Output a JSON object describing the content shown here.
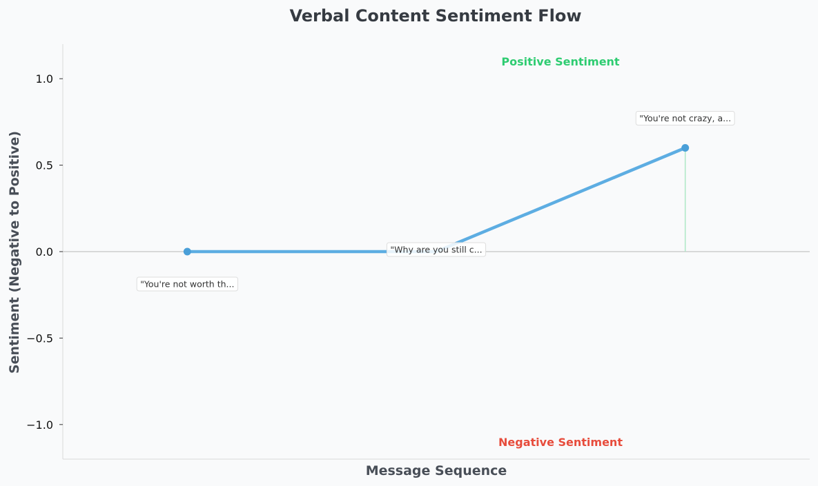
{
  "chart_data": {
    "type": "line",
    "title": "Verbal Content Sentiment Flow",
    "xlabel": "Message Sequence",
    "ylabel": "Sentiment (Negative to Positive)",
    "ylim": [
      -1.2,
      1.2
    ],
    "yticks": [
      1.0,
      0.5,
      0.0,
      -0.5,
      -1.0
    ],
    "ytick_labels": [
      "1.0",
      "0.5",
      "0.0",
      "−0.5",
      "−1.0"
    ],
    "grid": false,
    "series": [
      {
        "color": "#5dade2",
        "points": [
          {
            "x": 0,
            "y": 0.0,
            "marker": true,
            "annotation": "\"You're not worth th..."
          },
          {
            "x": 1,
            "y": 0.0,
            "marker": false,
            "annotation": "\"Why are you still c..."
          },
          {
            "x": 2,
            "y": 0.6,
            "marker": true,
            "annotation": "\"You're not crazy, a..."
          }
        ]
      }
    ],
    "xlim": [
      -0.5,
      2.5
    ],
    "region_labels": {
      "positive": "Positive Sentiment",
      "negative": "Negative Sentiment"
    },
    "colors": {
      "line": "#5dade2",
      "marker": "#4a9fd8",
      "positive": "#2ecc71",
      "negative": "#e74c3c",
      "baseline": "#cccccc",
      "stem": "#aee8c6"
    }
  }
}
